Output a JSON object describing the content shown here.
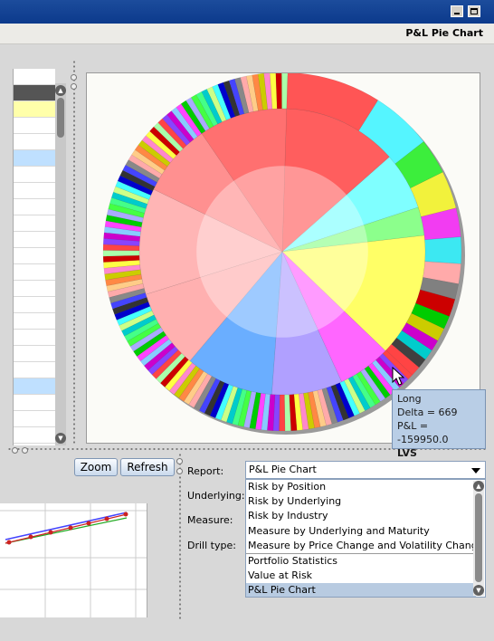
{
  "window": {
    "title": ""
  },
  "header": {
    "title": "P&L Pie Chart"
  },
  "left_table": {
    "rows": [
      "",
      "",
      "",
      "",
      "",
      "",
      "",
      "",
      "",
      "",
      "",
      "",
      "",
      "",
      "",
      "",
      "",
      "",
      "",
      "",
      "",
      "",
      ""
    ]
  },
  "toolbar": {
    "zoom_label": "Zoom",
    "refresh_label": "Refresh"
  },
  "form": {
    "report_label": "Report:",
    "underlying_label": "Underlying:",
    "measure_label": "Measure:",
    "drill_label": "Drill type:",
    "report_value": "P&L Pie Chart"
  },
  "report_options": [
    "Risk by Position",
    "Risk by Underlying",
    "Risk by Industry",
    "Measure by Underlying and Maturity",
    "Measure by Price Change and Volatility Change",
    "Portfolio Statistics",
    "Value at Risk",
    "P&L Pie Chart"
  ],
  "selected_option": "P&L Pie Chart",
  "tooltip": {
    "side": "Long",
    "delta": "Delta = 669",
    "pnl": "P&L = -159950.0",
    "symbol": "LVS"
  },
  "colors": {
    "titlebar": "#0c3a8c",
    "selection": "#b8cbe1",
    "tooltip_bg": "#b9cee6"
  },
  "chart_data": {
    "type": "pie",
    "title": "",
    "inner_slices": [
      {
        "value": 13,
        "color": "#ff5e5e"
      },
      {
        "value": 6.5,
        "color": "#7fffff"
      },
      {
        "value": 3.2,
        "color": "#8cff8c"
      },
      {
        "value": 14,
        "color": "#ffff66"
      },
      {
        "value": 6,
        "color": "#ff66ff"
      },
      {
        "value": 8,
        "color": "#b0a0ff"
      },
      {
        "value": 10,
        "color": "#6aaeff"
      },
      {
        "value": 9,
        "color": "#ffb0b0"
      },
      {
        "value": 12,
        "color": "#ffb5b5"
      },
      {
        "value": 8.3,
        "color": "#ff9090"
      },
      {
        "value": 10,
        "color": "#ff7070"
      }
    ],
    "outer_slices": [
      {
        "value": 8.5,
        "color": "#ff5555"
      },
      {
        "value": 5.5,
        "color": "#55f5ff"
      },
      {
        "value": 3.2,
        "color": "#3cee3c"
      },
      {
        "value": 3.4,
        "color": "#f2f23c"
      },
      {
        "value": 2.6,
        "color": "#f23cf2"
      },
      {
        "value": 2.4,
        "color": "#3ce8f2"
      },
      {
        "value": 1.8,
        "color": "#ffaaaa"
      },
      {
        "value": 1.4,
        "color": "#808080"
      },
      {
        "value": 1.6,
        "color": "#cc0000"
      },
      {
        "value": 1.2,
        "color": "#00cc00"
      },
      {
        "value": 1.2,
        "color": "#cccc00"
      },
      {
        "value": 1.0,
        "color": "#cc00cc"
      },
      {
        "value": 1.0,
        "color": "#00cccc"
      },
      {
        "value": 0.9,
        "color": "#404040"
      },
      {
        "value": 0.9,
        "color": "#ff4444"
      }
    ]
  }
}
